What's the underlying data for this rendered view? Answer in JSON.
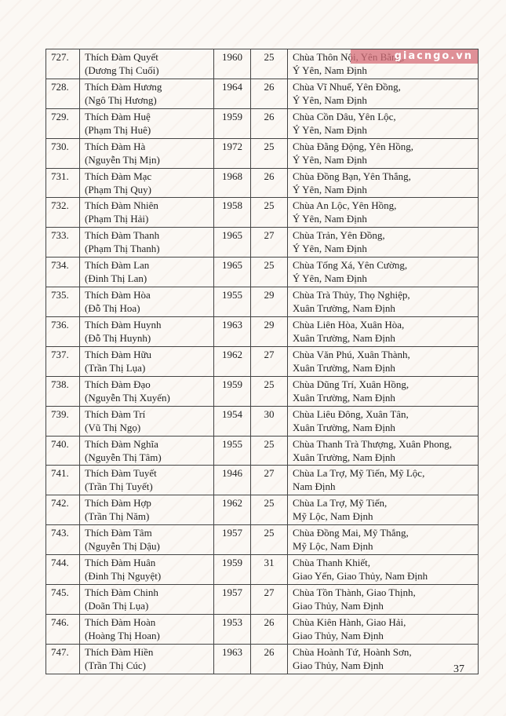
{
  "watermark": "giacngo.vn",
  "page_number": "37",
  "rows": [
    {
      "no": "727.",
      "name": "Thích Đàm Quyết",
      "lay_name": "(Dương Thị Cuối)",
      "year": "1960",
      "age": "25",
      "addr1": "Chùa Thôn Nội, Yên Bằng,",
      "addr2": "Ý Yên, Nam Định"
    },
    {
      "no": "728.",
      "name": "Thích Đàm Hương",
      "lay_name": "(Ngô Thị Hương)",
      "year": "1964",
      "age": "26",
      "addr1": "Chùa Vĩ Nhuế, Yên Đồng,",
      "addr2": "Ý Yên, Nam Định"
    },
    {
      "no": "729.",
      "name": "Thích Đàm Huệ",
      "lay_name": "(Phạm Thị Huê)",
      "year": "1959",
      "age": "26",
      "addr1": "Chùa Cồn Dâu, Yên Lộc,",
      "addr2": "Ý Yên, Nam Định"
    },
    {
      "no": "730.",
      "name": "Thích Đàm Hà",
      "lay_name": "(Nguyễn Thị Mịn)",
      "year": "1972",
      "age": "25",
      "addr1": "Chùa Đằng Động, Yên Hồng,",
      "addr2": "Ý Yên, Nam Định"
    },
    {
      "no": "731.",
      "name": "Thích Đàm Mạc",
      "lay_name": "(Phạm Thị Quy)",
      "year": "1968",
      "age": "26",
      "addr1": "Chùa Đồng Bạn, Yên Thắng,",
      "addr2": "Ý Yên, Nam Định"
    },
    {
      "no": "732.",
      "name": "Thích Đàm Nhiên",
      "lay_name": "(Phạm Thị Hải)",
      "year": "1958",
      "age": "25",
      "addr1": "Chùa An Lộc, Yên Hồng,",
      "addr2": "Ý Yên, Nam Định"
    },
    {
      "no": "733.",
      "name": "Thích Đàm Thanh",
      "lay_name": "(Phạm Thị Thanh)",
      "year": "1965",
      "age": "27",
      "addr1": "Chùa Trản, Yên Đồng,",
      "addr2": "Ý Yên, Nam Định"
    },
    {
      "no": "734.",
      "name": "Thích Đàm Lan",
      "lay_name": "(Đinh Thị Lan)",
      "year": "1965",
      "age": "25",
      "addr1": "Chùa Tống Xá, Yên Cường,",
      "addr2": "Ý Yên, Nam Định"
    },
    {
      "no": "735.",
      "name": "Thích Đàm Hòa",
      "lay_name": "(Đỗ Thị Hoa)",
      "year": "1955",
      "age": "29",
      "addr1": "Chùa Trà Thủy, Thọ Nghiệp,",
      "addr2": "Xuân Trường, Nam Định"
    },
    {
      "no": "736.",
      "name": "Thích Đàm Huynh",
      "lay_name": "(Đỗ Thị Huynh)",
      "year": "1963",
      "age": "29",
      "addr1": "Chùa Liên Hòa, Xuân Hòa,",
      "addr2": "Xuân Trường, Nam Định"
    },
    {
      "no": "737.",
      "name": "Thích Đàm Hữu",
      "lay_name": "(Trần Thị Lụa)",
      "year": "1962",
      "age": "27",
      "addr1": "Chùa Văn Phú, Xuân Thành,",
      "addr2": "Xuân Trường, Nam Định"
    },
    {
      "no": "738.",
      "name": "Thích Đàm Đạo",
      "lay_name": "(Nguyễn Thị Xuyến)",
      "year": "1959",
      "age": "25",
      "addr1": "Chùa Dũng Trí, Xuân Hồng,",
      "addr2": "Xuân Trường, Nam Định"
    },
    {
      "no": "739.",
      "name": "Thích Đàm Trí",
      "lay_name": "(Vũ Thị Ngọ)",
      "year": "1954",
      "age": "30",
      "addr1": "Chùa Liêu Đông, Xuân Tân,",
      "addr2": "Xuân Trường, Nam Định"
    },
    {
      "no": "740.",
      "name": "Thích Đàm Nghĩa",
      "lay_name": "(Nguyễn Thị Tâm)",
      "year": "1955",
      "age": "25",
      "addr1": "Chùa Thanh Trà Thượng, Xuân Phong,",
      "addr2": "Xuân Trường, Nam Định"
    },
    {
      "no": "741.",
      "name": "Thích Đàm Tuyết",
      "lay_name": "(Trần Thị Tuyết)",
      "year": "1946",
      "age": "27",
      "addr1": "Chùa La Trợ, Mỹ Tiến, Mỹ Lộc,",
      "addr2": "Nam Định"
    },
    {
      "no": "742.",
      "name": "Thích Đàm Hợp",
      "lay_name": "(Trần Thị Năm)",
      "year": "1962",
      "age": "25",
      "addr1": "Chùa La Trợ, Mỹ Tiến,",
      "addr2": "Mỹ Lộc, Nam Định"
    },
    {
      "no": "743.",
      "name": "Thích Đàm Tâm",
      "lay_name": "(Nguyễn Thị Dậu)",
      "year": "1957",
      "age": "25",
      "addr1": "Chùa Đồng Mai, Mỹ Thắng,",
      "addr2": "Mỹ Lộc, Nam Định"
    },
    {
      "no": "744.",
      "name": "Thích Đàm Huân",
      "lay_name": "(Đinh Thị Nguyệt)",
      "year": "1959",
      "age": "31",
      "addr1": "Chùa Thanh Khiết,",
      "addr2": "Giao Yến, Giao Thủy, Nam Định"
    },
    {
      "no": "745.",
      "name": "Thích Đàm Chinh",
      "lay_name": "(Doãn Thị Lụa)",
      "year": "1957",
      "age": "27",
      "addr1": "Chùa Tồn Thành, Giao Thịnh,",
      "addr2": "Giao Thủy, Nam Định"
    },
    {
      "no": "746.",
      "name": "Thích Đàm Hoàn",
      "lay_name": "(Hoàng Thị Hoan)",
      "year": "1953",
      "age": "26",
      "addr1": "Chùa Kiên Hành, Giao Hải,",
      "addr2": "Giao Thủy, Nam Định"
    },
    {
      "no": "747.",
      "name": "Thích Đàm Hiền",
      "lay_name": "(Trần Thị Cúc)",
      "year": "1963",
      "age": "26",
      "addr1": "Chùa Hoành Tứ, Hoành Sơn,",
      "addr2": "Giao Thủy, Nam Định"
    }
  ]
}
